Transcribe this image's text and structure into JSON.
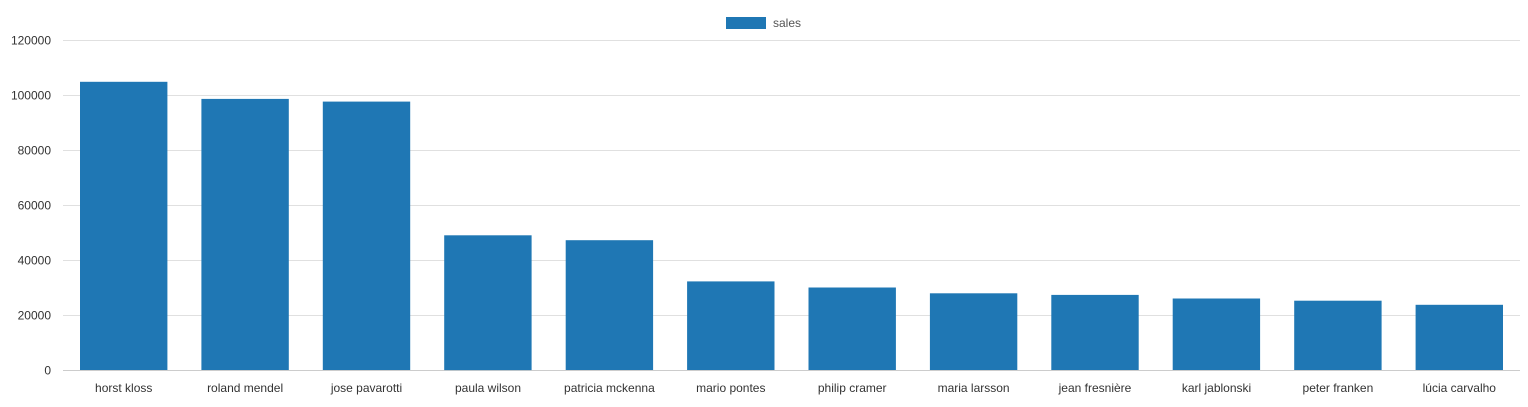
{
  "chart_data": {
    "type": "bar",
    "categories": [
      "horst kloss",
      "roland mendel",
      "jose pavarotti",
      "paula wilson",
      "patricia mckenna",
      "mario pontes",
      "philip cramer",
      "maria larsson",
      "jean fresnière",
      "karl jablonski",
      "peter franken",
      "lúcia carvalho"
    ],
    "series": [
      {
        "name": "sales",
        "color": "#1f77b4",
        "values": [
          104800,
          98600,
          97600,
          49000,
          47200,
          32200,
          30000,
          27900,
          27300,
          26000,
          25200,
          23700
        ]
      }
    ],
    "title": "",
    "xlabel": "",
    "ylabel": "",
    "ylim": [
      0,
      120000
    ],
    "yticks": [
      0,
      20000,
      40000,
      60000,
      80000,
      100000,
      120000
    ],
    "ytick_labels": [
      "0",
      "20000",
      "40000",
      "60000",
      "80000",
      "100000",
      "120000"
    ],
    "grid": true,
    "legend_position": "top-center"
  }
}
